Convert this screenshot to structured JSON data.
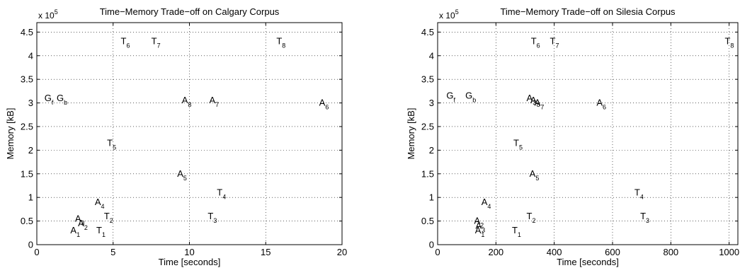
{
  "chart_data": [
    {
      "type": "scatter",
      "title": "Time−Memory Trade−off on Calgary Corpus",
      "xlabel": "Time [seconds]",
      "ylabel": "Memory [kB]",
      "y_multiplier_label": "x 10",
      "y_multiplier_exponent": "5",
      "xlim": [
        0,
        20
      ],
      "ylim": [
        0,
        4.7
      ],
      "xticks": [
        0,
        5,
        10,
        15,
        20
      ],
      "xtick_labels": [
        "0",
        "5",
        "10",
        "15",
        "20"
      ],
      "yticks": [
        0,
        0.5,
        1,
        1.5,
        2,
        2.5,
        3,
        3.5,
        4,
        4.5
      ],
      "ytick_labels": [
        "0",
        "0.5",
        "1",
        "1.5",
        "2",
        "2.5",
        "3",
        "3.5",
        "4",
        "4.5"
      ],
      "grid": true,
      "points": [
        {
          "label": "T",
          "sub": "6",
          "x": 5.5,
          "y": 4.3
        },
        {
          "label": "T",
          "sub": "7",
          "x": 7.5,
          "y": 4.3
        },
        {
          "label": "T",
          "sub": "8",
          "x": 15.7,
          "y": 4.3
        },
        {
          "label": "G",
          "sub": "f",
          "x": 0.5,
          "y": 3.1
        },
        {
          "label": "G",
          "sub": "b",
          "x": 1.3,
          "y": 3.1
        },
        {
          "label": "A",
          "sub": "8",
          "x": 9.5,
          "y": 3.05
        },
        {
          "label": "A",
          "sub": "7",
          "x": 11.3,
          "y": 3.05
        },
        {
          "label": "A",
          "sub": "6",
          "x": 18.5,
          "y": 3.0
        },
        {
          "label": "T",
          "sub": "5",
          "x": 4.6,
          "y": 2.15
        },
        {
          "label": "A",
          "sub": "5",
          "x": 9.2,
          "y": 1.5
        },
        {
          "label": "T",
          "sub": "4",
          "x": 11.8,
          "y": 1.1
        },
        {
          "label": "A",
          "sub": "4",
          "x": 3.8,
          "y": 0.9
        },
        {
          "label": "A",
          "sub": "3",
          "x": 2.5,
          "y": 0.55
        },
        {
          "label": "A",
          "sub": "2",
          "x": 2.7,
          "y": 0.45
        },
        {
          "label": "T",
          "sub": "2",
          "x": 4.4,
          "y": 0.6
        },
        {
          "label": "T",
          "sub": "3",
          "x": 11.2,
          "y": 0.6
        },
        {
          "label": "A",
          "sub": "1",
          "x": 2.2,
          "y": 0.3
        },
        {
          "label": "T",
          "sub": "1",
          "x": 3.9,
          "y": 0.3
        }
      ]
    },
    {
      "type": "scatter",
      "title": "Time−Memory Trade−off on Silesia Corpus",
      "xlabel": "Time [seconds]",
      "ylabel": "Memory [kB]",
      "y_multiplier_label": "x 10",
      "y_multiplier_exponent": "5",
      "xlim": [
        0,
        1030
      ],
      "ylim": [
        0,
        4.7
      ],
      "xticks": [
        0,
        200,
        400,
        600,
        800,
        1000
      ],
      "xtick_labels": [
        "0",
        "200",
        "400",
        "600",
        "800",
        "1000"
      ],
      "yticks": [
        0,
        0.5,
        1,
        1.5,
        2,
        2.5,
        3,
        3.5,
        4,
        4.5
      ],
      "ytick_labels": [
        "0",
        "0.5",
        "1",
        "1.5",
        "2",
        "2.5",
        "3",
        "3.5",
        "4",
        "4.5"
      ],
      "grid": true,
      "points": [
        {
          "label": "T",
          "sub": "6",
          "x": 320,
          "y": 4.3
        },
        {
          "label": "T",
          "sub": "7",
          "x": 385,
          "y": 4.3
        },
        {
          "label": "T",
          "sub": "8",
          "x": 985,
          "y": 4.3
        },
        {
          "label": "G",
          "sub": "f",
          "x": 30,
          "y": 3.15
        },
        {
          "label": "G",
          "sub": "b",
          "x": 95,
          "y": 3.15
        },
        {
          "label": "A",
          "sub": "3",
          "x": 305,
          "y": 3.1
        },
        {
          "label": "A",
          "sub": "8",
          "x": 318,
          "y": 3.05
        },
        {
          "label": "A",
          "sub": "7",
          "x": 332,
          "y": 3.0
        },
        {
          "label": "A",
          "sub": "6",
          "x": 545,
          "y": 3.0
        },
        {
          "label": "T",
          "sub": "5",
          "x": 260,
          "y": 2.15
        },
        {
          "label": "A",
          "sub": "5",
          "x": 315,
          "y": 1.5
        },
        {
          "label": "T",
          "sub": "4",
          "x": 675,
          "y": 1.1
        },
        {
          "label": "A",
          "sub": "4",
          "x": 150,
          "y": 0.9
        },
        {
          "label": "T",
          "sub": "2",
          "x": 305,
          "y": 0.6
        },
        {
          "label": "T",
          "sub": "3",
          "x": 695,
          "y": 0.6
        },
        {
          "label": "A",
          "sub": "2",
          "x": 125,
          "y": 0.5
        },
        {
          "label": "A",
          "sub": "3",
          "x": 130,
          "y": 0.4
        },
        {
          "label": "A",
          "sub": "1",
          "x": 128,
          "y": 0.3
        },
        {
          "label": "T",
          "sub": "1",
          "x": 255,
          "y": 0.3
        }
      ]
    }
  ]
}
